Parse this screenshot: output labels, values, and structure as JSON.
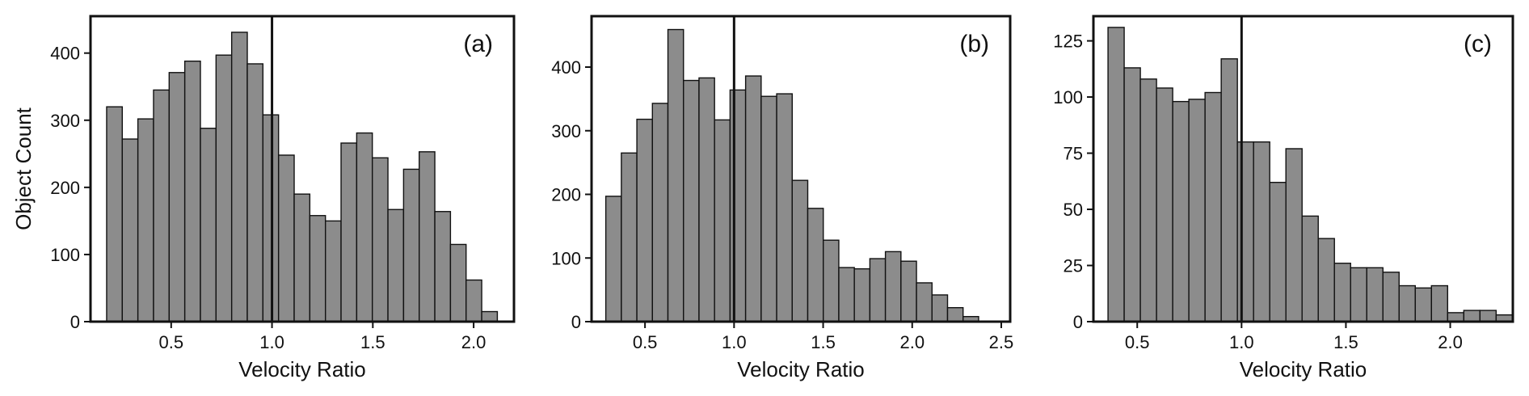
{
  "chart_data": [
    {
      "type": "bar",
      "panel_label": "(a)",
      "xlabel": "Velocity Ratio",
      "ylabel": "Object Count",
      "xlim": [
        0.1,
        2.2
      ],
      "ylim": [
        0,
        455
      ],
      "xticks": [
        0.5,
        1.0,
        1.5,
        2.0
      ],
      "xtick_labels": [
        "0.5",
        "1.0",
        "1.5",
        "2.0"
      ],
      "yticks": [
        0,
        100,
        200,
        300,
        400
      ],
      "ytick_labels": [
        "0",
        "100",
        "200",
        "300",
        "400"
      ],
      "bin_start": 0.18,
      "bin_width": 0.0775,
      "values": [
        320,
        272,
        302,
        345,
        371,
        388,
        288,
        397,
        431,
        384,
        308,
        248,
        190,
        158,
        150,
        266,
        281,
        244,
        167,
        227,
        253,
        164,
        115,
        62,
        15
      ],
      "vline_x": 1.0,
      "bar_color": "#8c8c8c",
      "edge_color": "#111111"
    },
    {
      "type": "bar",
      "panel_label": "(b)",
      "xlabel": "Velocity Ratio",
      "ylabel": "",
      "xlim": [
        0.2,
        2.55
      ],
      "ylim": [
        0,
        480
      ],
      "xticks": [
        0.5,
        1.0,
        1.5,
        2.0,
        2.5
      ],
      "xtick_labels": [
        "0.5",
        "1.0",
        "1.5",
        "2.0",
        "2.5"
      ],
      "yticks": [
        0,
        100,
        200,
        300,
        400
      ],
      "ytick_labels": [
        "0",
        "100",
        "200",
        "300",
        "400"
      ],
      "bin_start": 0.28,
      "bin_width": 0.0872,
      "values": [
        197,
        265,
        318,
        343,
        459,
        379,
        383,
        317,
        364,
        386,
        354,
        358,
        222,
        178,
        128,
        85,
        83,
        99,
        110,
        95,
        61,
        42,
        22,
        8
      ],
      "vline_x": 1.0,
      "bar_color": "#8c8c8c",
      "edge_color": "#111111"
    },
    {
      "type": "bar",
      "panel_label": "(c)",
      "xlabel": "Velocity Ratio",
      "ylabel": "",
      "xlim": [
        0.29,
        2.3
      ],
      "ylim": [
        0,
        136
      ],
      "xticks": [
        0.5,
        1.0,
        1.5,
        2.0
      ],
      "xtick_labels": [
        "0.5",
        "1.0",
        "1.5",
        "2.0"
      ],
      "yticks": [
        0,
        25,
        50,
        75,
        100,
        125
      ],
      "ytick_labels": [
        "0",
        "25",
        "50",
        "75",
        "100",
        "125"
      ],
      "bin_start": 0.36,
      "bin_width": 0.0775,
      "values": [
        131,
        113,
        108,
        104,
        98,
        99,
        102,
        117,
        80,
        80,
        62,
        77,
        47,
        37,
        26,
        24,
        24,
        22,
        16,
        15,
        16,
        4,
        5,
        5,
        3
      ],
      "vline_x": 1.0,
      "bar_color": "#8c8c8c",
      "edge_color": "#111111"
    }
  ]
}
